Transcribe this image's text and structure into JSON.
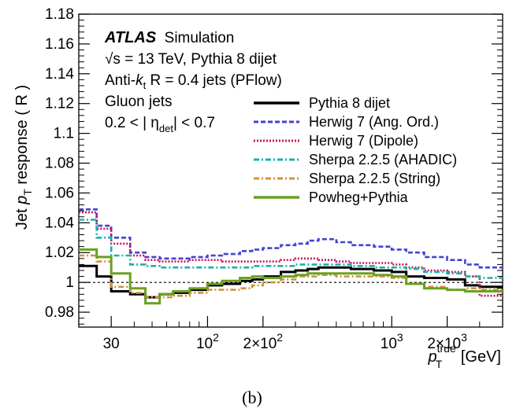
{
  "chart_data": {
    "type": "line",
    "x_scale": "log",
    "xlim": [
      20,
      4000
    ],
    "ylim": [
      0.97,
      1.18
    ],
    "grid": false,
    "legend_placement": "right",
    "reference_line_y": 1.0,
    "x_ticks": [
      {
        "value": 30,
        "label": "30"
      },
      {
        "value": 100,
        "label": "10",
        "sup": "2"
      },
      {
        "value": 200,
        "label": "2×10",
        "sup": "2"
      },
      {
        "value": 1000,
        "label": "10",
        "sup": "3"
      },
      {
        "value": 2000,
        "label": "2×10",
        "sup": "3"
      }
    ],
    "y_ticks": [
      {
        "value": 0.98,
        "label": "0.98"
      },
      {
        "value": 1.0,
        "label": "1"
      },
      {
        "value": 1.02,
        "label": "1.02"
      },
      {
        "value": 1.04,
        "label": "1.04"
      },
      {
        "value": 1.06,
        "label": "1.06"
      },
      {
        "value": 1.08,
        "label": "1.08"
      },
      {
        "value": 1.1,
        "label": "1.1"
      },
      {
        "value": 1.12,
        "label": "1.12"
      },
      {
        "value": 1.14,
        "label": "1.14"
      },
      {
        "value": 1.16,
        "label": "1.16"
      },
      {
        "value": 1.18,
        "label": "1.18"
      }
    ],
    "ylabel_parts": {
      "pre": "Jet ",
      "p": "p",
      "sub": "T",
      "post": " response ( R )"
    },
    "xlabel_parts": {
      "p": "p",
      "sub": "T",
      "sup": "true",
      "unit": " [GeV]"
    },
    "bin_edges": [
      20,
      25,
      30,
      38,
      46,
      55,
      65,
      80,
      100,
      120,
      150,
      175,
      200,
      250,
      300,
      350,
      400,
      500,
      600,
      800,
      1000,
      1200,
      1500,
      2000,
      2500,
      3000,
      4000
    ],
    "series": [
      {
        "name": "Pythia 8 dijet",
        "color": "#000000",
        "dash": "none",
        "values": [
          1.011,
          1.004,
          0.994,
          0.992,
          0.99,
          0.992,
          0.993,
          0.995,
          0.998,
          0.999,
          1.001,
          1.002,
          1.004,
          1.007,
          1.008,
          1.009,
          1.01,
          1.01,
          1.009,
          1.008,
          1.007,
          1.004,
          1.003,
          1.002,
          0.998,
          0.997
        ]
      },
      {
        "name": "Herwig 7 (Ang. Ord.)",
        "color": "#4242d6",
        "dash": "6,3",
        "values": [
          1.049,
          1.038,
          1.03,
          1.02,
          1.017,
          1.016,
          1.016,
          1.017,
          1.018,
          1.019,
          1.021,
          1.022,
          1.023,
          1.025,
          1.026,
          1.028,
          1.029,
          1.027,
          1.025,
          1.024,
          1.022,
          1.02,
          1.017,
          1.015,
          1.012,
          1.01
        ]
      },
      {
        "name": "Herwig 7 (Dipole)",
        "color": "#c2185b",
        "dash": "2,2",
        "values": [
          1.047,
          1.036,
          1.026,
          1.018,
          1.015,
          1.014,
          1.014,
          1.015,
          1.015,
          1.014,
          1.014,
          1.014,
          1.014,
          1.015,
          1.016,
          1.016,
          1.015,
          1.014,
          1.013,
          1.013,
          1.012,
          1.01,
          1.008,
          1.007,
          1.004,
          0.991
        ]
      },
      {
        "name": "Sherpa 2.2.5 (AHADIC)",
        "color": "#1ab0b0",
        "dash": "7,3,2,3",
        "values": [
          1.042,
          1.03,
          1.018,
          1.012,
          1.011,
          1.01,
          1.01,
          1.01,
          1.01,
          1.01,
          1.01,
          1.011,
          1.011,
          1.011,
          1.012,
          1.012,
          1.012,
          1.012,
          1.011,
          1.01,
          1.01,
          1.009,
          1.007,
          1.006,
          1.004,
          1.003
        ]
      },
      {
        "name": "Sherpa 2.2.5 (String)",
        "color": "#d4913d",
        "dash": "7,3,2,3",
        "values": [
          1.018,
          1.014,
          0.997,
          0.993,
          0.99,
          0.99,
          0.991,
          0.993,
          0.995,
          0.995,
          0.996,
          0.998,
          1.0,
          1.002,
          1.004,
          1.004,
          1.005,
          1.004,
          1.004,
          1.004,
          1.003,
          0.999,
          0.997,
          0.995,
          0.996,
          0.995
        ]
      },
      {
        "name": "Powheg+Pythia",
        "color": "#6aa121",
        "dash": "none",
        "values": [
          1.022,
          1.017,
          1.006,
          0.996,
          0.986,
          0.992,
          0.994,
          0.996,
          0.999,
          1.001,
          1.003,
          1.004,
          1.003,
          1.004,
          1.005,
          1.006,
          1.006,
          1.006,
          1.006,
          1.005,
          1.004,
          0.999,
          0.996,
          0.995,
          0.994,
          0.994
        ]
      }
    ]
  },
  "annotations": {
    "atlas": "ATLAS",
    "simulation": "Simulation",
    "line2_sqrt": "√s",
    "line2_rest": " = 13 TeV, Pythia 8 dijet",
    "line3_pre": "Anti-",
    "line3_k": "k",
    "line3_sub": "t",
    "line3_post": " R = 0.4 jets (PFlow)",
    "line4": "Gluon jets",
    "line5_pre": "0.2 < | η",
    "line5_sub": "det",
    "line5_post": "| < 0.7"
  },
  "caption": "(b)"
}
